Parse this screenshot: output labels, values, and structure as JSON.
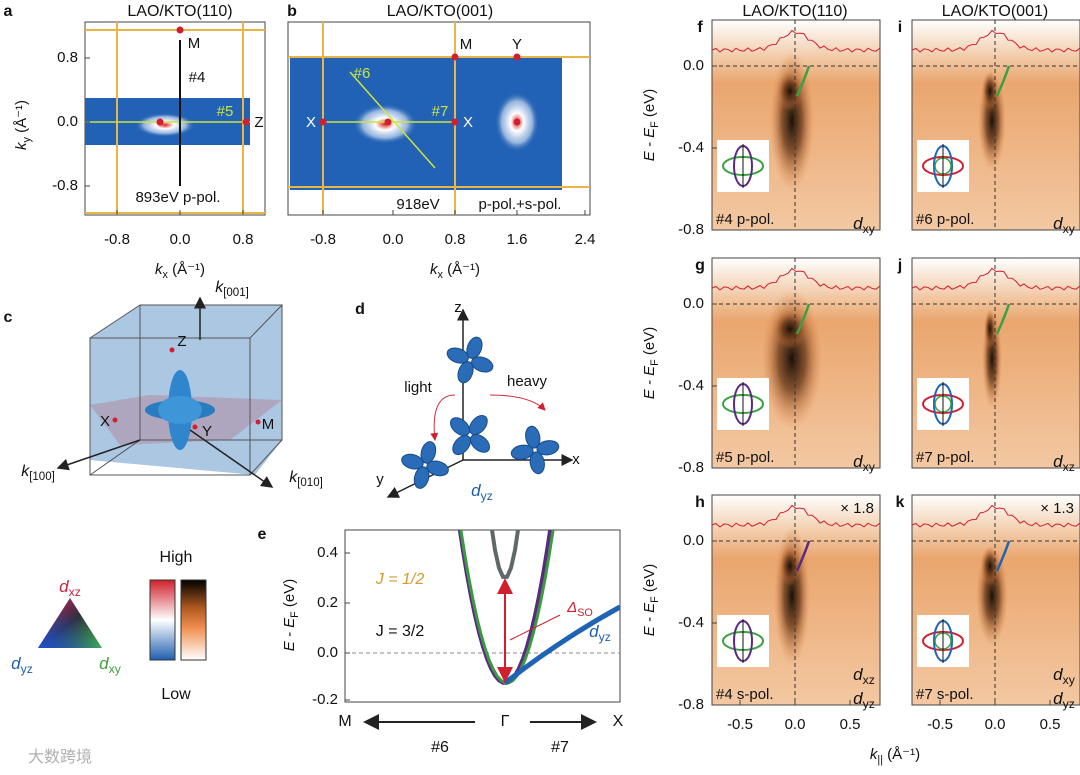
{
  "panel_a": {
    "letter": "a",
    "title": "LAO/KTO(110)",
    "ylabel": {
      "main": "k",
      "sub": "y",
      "unit": " (Å⁻¹)"
    },
    "yticks": [
      "0.8",
      "0.0",
      "-0.8"
    ],
    "xticks": [
      "-0.8",
      "0.0",
      "0.8"
    ],
    "xlabel": {
      "main": "k",
      "sub": "x",
      "unit": " (Å⁻¹)"
    },
    "points": [
      "M",
      "Z"
    ],
    "cuts": [
      "#4",
      "#5"
    ],
    "note": "893eV p-pol."
  },
  "panel_b": {
    "letter": "b",
    "title": "LAO/KTO(001)",
    "xticks": [
      "-0.8",
      "0.0",
      "0.8",
      "1.6",
      "2.4"
    ],
    "xlabel": {
      "main": "k",
      "sub": "x",
      "unit": " (Å⁻¹)"
    },
    "points": [
      "X",
      "X",
      "M",
      "Y"
    ],
    "cuts": [
      "#6",
      "#7"
    ],
    "energy": "918eV",
    "polarization": "p-pol.+s-pol."
  },
  "panel_c": {
    "letter": "c",
    "axes": [
      {
        "main": "k",
        "sub": "[001]"
      },
      {
        "main": "k",
        "sub": "[100]"
      },
      {
        "main": "k",
        "sub": "[010]"
      }
    ],
    "points": [
      "Z",
      "X",
      "Y",
      "M"
    ]
  },
  "panel_d": {
    "letter": "d",
    "axes": [
      "z",
      "x",
      "y"
    ],
    "light": "light",
    "heavy": "heavy",
    "orbital": {
      "main": "d",
      "sub": "yz"
    }
  },
  "legend": {
    "orbitals": [
      {
        "main": "d",
        "sub": "xz"
      },
      {
        "main": "d",
        "sub": "yz"
      },
      {
        "main": "d",
        "sub": "xy"
      }
    ],
    "high": "High",
    "low": "Low"
  },
  "panel_e": {
    "letter": "e",
    "yticks": [
      "0.4",
      "0.2",
      "0.0",
      "-0.2"
    ],
    "ylabel": {
      "main": "E - E",
      "sub": "F",
      "unit": " (eV)"
    },
    "xticks": [
      "M",
      "Γ",
      "X"
    ],
    "cuts": [
      "#6",
      "#7"
    ],
    "j_half": "J = 1/2",
    "j_three_halves": "J = 3/2",
    "gap": {
      "main": "Δ",
      "sub": "SO"
    },
    "orbital": {
      "main": "d",
      "sub": "yz"
    }
  },
  "arpes": [
    {
      "letter": "f",
      "title": "LAO/KTO(110)",
      "yticks": [
        "0.0",
        "-0.4",
        "-0.8"
      ],
      "ylabel": {
        "main": "E - E",
        "sub": "F",
        "unit": " (eV)"
      },
      "label": "#4 p-pol.",
      "orbitals": [
        {
          "main": "d",
          "sub": "xy"
        }
      ]
    },
    {
      "letter": "g",
      "yticks": [
        "0.0",
        "-0.4",
        "-0.8"
      ],
      "ylabel": {
        "main": "E - E",
        "sub": "F",
        "unit": " (eV)"
      },
      "label": "#5 p-pol.",
      "orbitals": [
        {
          "main": "d",
          "sub": "xy"
        }
      ]
    },
    {
      "letter": "h",
      "yticks": [
        "0.0",
        "-0.4",
        "-0.8"
      ],
      "ylabel": {
        "main": "E - E",
        "sub": "F",
        "unit": " (eV)"
      },
      "label": "#4 s-pol.",
      "scale": "× 1.8",
      "orbitals": [
        {
          "main": "d",
          "sub": "xz"
        },
        {
          "main": "d",
          "sub": "yz"
        }
      ],
      "xticks": [
        "-0.5",
        "0.0",
        "0.5"
      ]
    },
    {
      "letter": "i",
      "title": "LAO/KTO(001)",
      "label": "#6 p-pol.",
      "orbitals": [
        {
          "main": "d",
          "sub": "xy"
        }
      ]
    },
    {
      "letter": "j",
      "label": "#7 p-pol.",
      "orbitals": [
        {
          "main": "d",
          "sub": "xz"
        }
      ]
    },
    {
      "letter": "k",
      "label": "#7 s-pol.",
      "scale": "× 1.3",
      "orbitals": [
        {
          "main": "d",
          "sub": "xy"
        },
        {
          "main": "d",
          "sub": "yz"
        }
      ],
      "xticks": [
        "-0.5",
        "0.0",
        "0.5"
      ]
    }
  ],
  "arpes_xlabel": {
    "main": "k",
    "sub": "||",
    "unit": " (Å⁻¹)"
  },
  "watermark": "大数跨境"
}
